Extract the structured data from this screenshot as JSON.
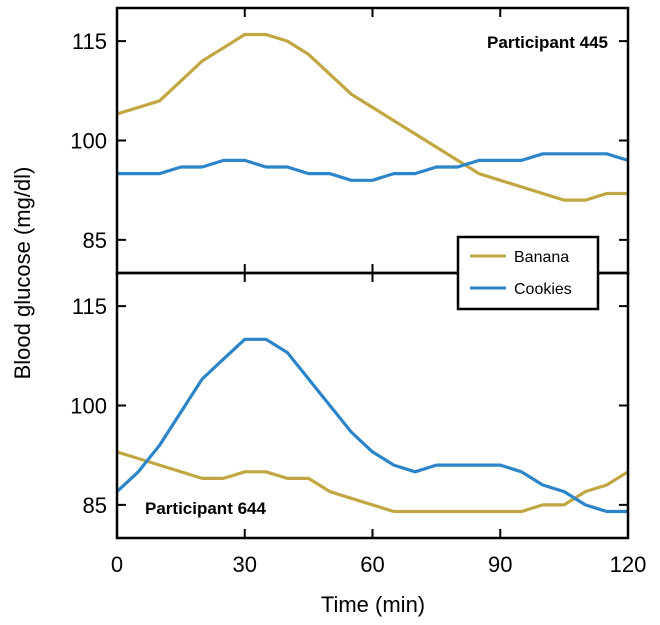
{
  "chart_data": {
    "type": "line",
    "xlabel": "Time (min)",
    "ylabel": "Blood glucose (mg/dl)",
    "xlim": [
      0,
      120
    ],
    "x_ticks": [
      "0",
      "30",
      "60",
      "90",
      "120"
    ],
    "legend": {
      "placement": "right, between panels",
      "entries": [
        "Banana",
        "Cookies"
      ]
    },
    "colors": {
      "Banana": "#C2A642",
      "Cookies": "#2B85C8"
    },
    "panels": [
      {
        "label": "Participant 445",
        "ylim": [
          80,
          120
        ],
        "y_ticks": [
          "115",
          "100",
          "85"
        ],
        "series": [
          {
            "name": "Banana",
            "x": [
              0,
              10,
              15,
              20,
              25,
              30,
              35,
              40,
              45,
              50,
              55,
              60,
              65,
              70,
              75,
              80,
              85,
              90,
              95,
              100,
              105,
              110,
              115,
              120
            ],
            "values": [
              104,
              106,
              109,
              112,
              114,
              116,
              116,
              115,
              113,
              110,
              107,
              105,
              103,
              101,
              99,
              97,
              95,
              94,
              93,
              92,
              91,
              91,
              92,
              92
            ]
          },
          {
            "name": "Cookies",
            "x": [
              0,
              10,
              15,
              20,
              25,
              30,
              35,
              40,
              45,
              50,
              55,
              60,
              65,
              70,
              75,
              80,
              85,
              90,
              95,
              100,
              105,
              110,
              115,
              120
            ],
            "values": [
              95,
              95,
              96,
              96,
              97,
              97,
              96,
              96,
              95,
              95,
              94,
              94,
              95,
              95,
              96,
              96,
              97,
              97,
              97,
              98,
              98,
              98,
              98,
              97
            ]
          }
        ]
      },
      {
        "label": "Participant 644",
        "ylim": [
          80,
          120
        ],
        "y_ticks": [
          "115",
          "100",
          "85"
        ],
        "series": [
          {
            "name": "Banana",
            "x": [
              0,
              10,
              20,
              25,
              30,
              35,
              40,
              45,
              50,
              55,
              60,
              65,
              70,
              75,
              80,
              85,
              90,
              95,
              100,
              105,
              110,
              115,
              120
            ],
            "values": [
              93,
              91,
              89,
              89,
              90,
              90,
              89,
              89,
              87,
              86,
              85,
              84,
              84,
              84,
              84,
              84,
              84,
              84,
              85,
              85,
              87,
              88,
              90
            ]
          },
          {
            "name": "Cookies",
            "x": [
              0,
              5,
              10,
              15,
              20,
              25,
              30,
              35,
              40,
              45,
              50,
              55,
              60,
              65,
              70,
              75,
              80,
              85,
              90,
              95,
              100,
              105,
              110,
              115,
              120
            ],
            "values": [
              87,
              90,
              94,
              99,
              104,
              107,
              110,
              110,
              108,
              104,
              100,
              96,
              93,
              91,
              90,
              91,
              91,
              91,
              91,
              90,
              88,
              87,
              85,
              84,
              84
            ]
          }
        ]
      }
    ]
  }
}
